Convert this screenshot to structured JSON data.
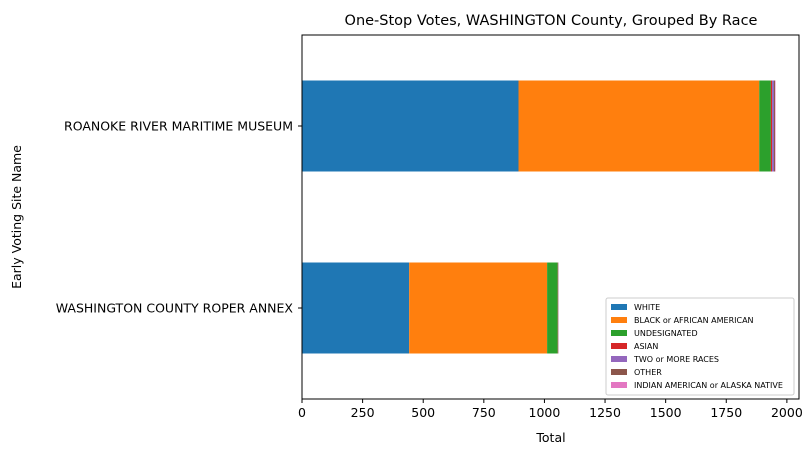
{
  "chart_data": {
    "type": "bar",
    "orientation": "horizontal",
    "stacked": true,
    "title": "One-Stop Votes, WASHINGTON County, Grouped By Race",
    "xlabel": "Total",
    "ylabel": "Early Voting Site Name",
    "xlim": [
      0,
      2050
    ],
    "xticks": [
      0,
      250,
      500,
      750,
      1000,
      1250,
      1500,
      1750,
      2000
    ],
    "categories": [
      "ROANOKE RIVER MARITIME MUSEUM",
      "WASHINGTON COUNTY ROPER ANNEX"
    ],
    "series": [
      {
        "name": "WHITE",
        "color": "#1f77b4",
        "values": [
          893,
          442
        ]
      },
      {
        "name": "BLACK or AFRICAN AMERICAN",
        "color": "#ff7f0e",
        "values": [
          993,
          569
        ]
      },
      {
        "name": "UNDESIGNATED",
        "color": "#2ca02c",
        "values": [
          48,
          44
        ]
      },
      {
        "name": "ASIAN",
        "color": "#d62728",
        "values": [
          5,
          1
        ]
      },
      {
        "name": "TWO or MORE RACES",
        "color": "#9467bd",
        "values": [
          8,
          1
        ]
      },
      {
        "name": "OTHER",
        "color": "#8c564b",
        "values": [
          4,
          1
        ]
      },
      {
        "name": "INDIAN AMERICAN or ALASKA NATIVE",
        "color": "#e377c2",
        "values": [
          2,
          0
        ]
      }
    ],
    "legend_position": "lower-right",
    "grid": false
  }
}
